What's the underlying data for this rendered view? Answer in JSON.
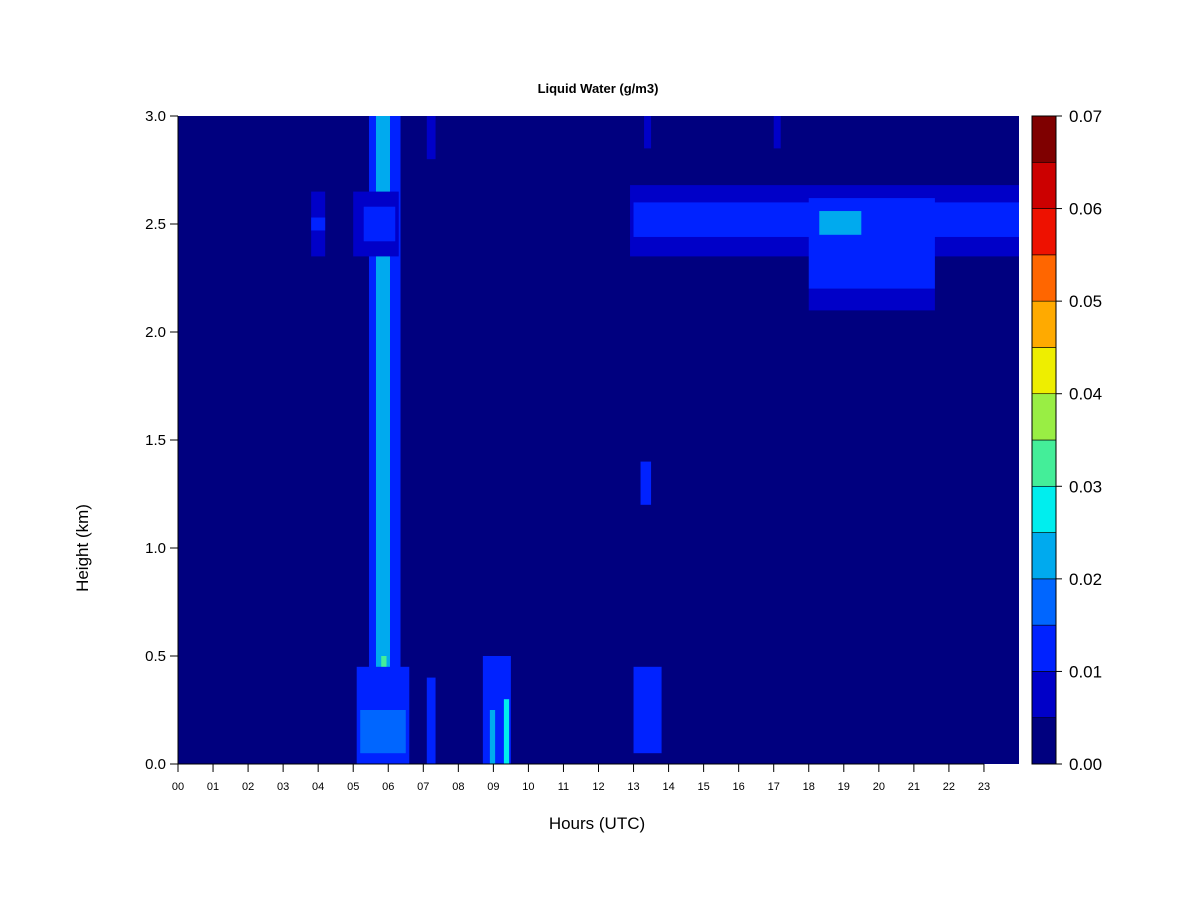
{
  "chart_data": {
    "type": "heatmap",
    "title": "Liquid Water (g/m3)",
    "xlabel": "Hours (UTC)",
    "ylabel": "Height (km)",
    "xlim": [
      0,
      24
    ],
    "ylim": [
      0,
      3
    ],
    "x_ticks": [
      "00",
      "01",
      "02",
      "03",
      "04",
      "05",
      "06",
      "07",
      "08",
      "09",
      "10",
      "11",
      "12",
      "13",
      "14",
      "15",
      "16",
      "17",
      "18",
      "19",
      "20",
      "21",
      "22",
      "23"
    ],
    "y_ticks": [
      "0.0",
      "0.5",
      "1.0",
      "1.5",
      "2.0",
      "2.5",
      "3.0"
    ],
    "colorbar": {
      "ticks": [
        "0.00",
        "0.01",
        "0.02",
        "0.03",
        "0.04",
        "0.05",
        "0.06",
        "0.07"
      ],
      "range": [
        0,
        0.07
      ],
      "levels": [
        "#00007f",
        "#0000c8",
        "#0022ff",
        "#0066ff",
        "#00aaee",
        "#00eeee",
        "#44ee99",
        "#99ee44",
        "#eeee00",
        "#ffaa00",
        "#ff6600",
        "#ee1100",
        "#cc0000",
        "#7f0000"
      ]
    },
    "background_value": 0.0,
    "regions": [
      {
        "t0": 5.45,
        "t1": 6.35,
        "z0": 0.0,
        "z1": 3.0,
        "value": 0.011
      },
      {
        "t0": 5.65,
        "t1": 6.05,
        "z0": 0.0,
        "z1": 3.0,
        "value": 0.021
      },
      {
        "t0": 5.8,
        "t1": 5.95,
        "z0": 0.05,
        "z1": 0.5,
        "value": 0.034
      },
      {
        "t0": 5.8,
        "t1": 5.88,
        "z0": 0.1,
        "z1": 0.3,
        "value": 0.042
      },
      {
        "t0": 5.1,
        "t1": 6.6,
        "z0": 0.0,
        "z1": 0.45,
        "value": 0.011
      },
      {
        "t0": 5.2,
        "t1": 6.5,
        "z0": 0.05,
        "z1": 0.25,
        "value": 0.016
      },
      {
        "t0": 5.0,
        "t1": 6.3,
        "z0": 2.35,
        "z1": 2.65,
        "value": 0.008
      },
      {
        "t0": 5.3,
        "t1": 6.2,
        "z0": 2.42,
        "z1": 2.58,
        "value": 0.014
      },
      {
        "t0": 7.1,
        "t1": 7.35,
        "z0": 0.0,
        "z1": 0.4,
        "value": 0.012
      },
      {
        "t0": 7.1,
        "t1": 7.35,
        "z0": 2.8,
        "z1": 3.0,
        "value": 0.009
      },
      {
        "t0": 8.7,
        "t1": 9.5,
        "z0": 0.0,
        "z1": 0.5,
        "value": 0.012
      },
      {
        "t0": 9.3,
        "t1": 9.45,
        "z0": 0.0,
        "z1": 0.3,
        "value": 0.027
      },
      {
        "t0": 8.9,
        "t1": 9.05,
        "z0": 0.0,
        "z1": 0.25,
        "value": 0.02
      },
      {
        "t0": 13.0,
        "t1": 13.8,
        "z0": 0.05,
        "z1": 0.45,
        "value": 0.012
      },
      {
        "t0": 13.2,
        "t1": 13.5,
        "z0": 1.2,
        "z1": 1.4,
        "value": 0.01
      },
      {
        "t0": 3.8,
        "t1": 4.2,
        "z0": 2.35,
        "z1": 2.65,
        "value": 0.007
      },
      {
        "t0": 3.8,
        "t1": 4.2,
        "z0": 2.47,
        "z1": 2.53,
        "value": 0.011
      },
      {
        "t0": 12.9,
        "t1": 24.0,
        "z0": 2.35,
        "z1": 2.68,
        "value": 0.008
      },
      {
        "t0": 13.0,
        "t1": 24.0,
        "z0": 2.44,
        "z1": 2.6,
        "value": 0.012
      },
      {
        "t0": 18.0,
        "t1": 21.6,
        "z0": 2.2,
        "z1": 2.62,
        "value": 0.012
      },
      {
        "t0": 18.0,
        "t1": 21.6,
        "z0": 2.1,
        "z1": 2.2,
        "value": 0.008
      },
      {
        "t0": 18.3,
        "t1": 19.5,
        "z0": 2.45,
        "z1": 2.56,
        "value": 0.02
      },
      {
        "t0": 17.0,
        "t1": 17.2,
        "z0": 2.85,
        "z1": 3.0,
        "value": 0.008
      },
      {
        "t0": 13.3,
        "t1": 13.5,
        "z0": 2.85,
        "z1": 3.0,
        "value": 0.007
      }
    ]
  }
}
